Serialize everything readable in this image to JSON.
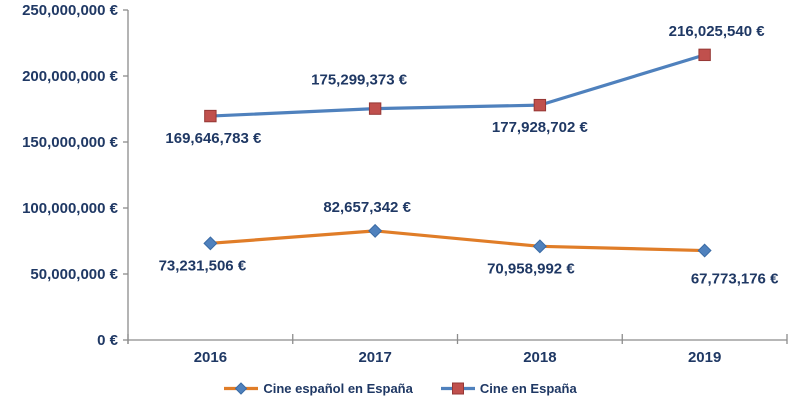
{
  "chart_data": {
    "type": "line",
    "title": "",
    "categories": [
      "2016",
      "2017",
      "2018",
      "2019"
    ],
    "series": [
      {
        "name": "Cine español en España",
        "line_color": "#E07D28",
        "marker": "diamond",
        "marker_color": "#4F81BD",
        "marker_stroke": "#3A6BA5",
        "values": [
          73231506,
          82657342,
          70958992,
          67773176
        ],
        "labels": [
          "73,231,506 €",
          "82,657,342 €",
          "70,958,992 €",
          "67,773,176 €"
        ],
        "label_positions": [
          "below",
          "above",
          "below",
          "below"
        ],
        "label_dx": [
          -8,
          -8,
          -9,
          30
        ],
        "label_dy": [
          0,
          0,
          0,
          6
        ]
      },
      {
        "name": "Cine en España",
        "line_color": "#4F81BD",
        "marker": "square",
        "marker_color": "#C0504D",
        "marker_stroke": "#953735",
        "values": [
          169646783,
          175299373,
          177928702,
          216025540
        ],
        "labels": [
          "169,646,783 €",
          "175,299,373 €",
          "177,928,702 €",
          "216,025,540 €"
        ],
        "label_positions": [
          "below",
          "above",
          "below",
          "above"
        ],
        "label_dx": [
          3,
          -16,
          0,
          12
        ],
        "label_dy": [
          0,
          -5,
          0,
          0
        ]
      }
    ],
    "y_axis": {
      "min": 0,
      "max": 250000000,
      "step": 50000000,
      "tick_labels": [
        "0 €",
        "50,000,000 €",
        "100,000,000 €",
        "150,000,000 €",
        "200,000,000 €",
        "250,000,000 €"
      ]
    },
    "x_axis": {
      "tick_labels": [
        "2016",
        "2017",
        "2018",
        "2019"
      ]
    },
    "legend": {
      "position": "bottom",
      "entries": [
        "Cine español en España",
        "Cine en España"
      ]
    },
    "grid": false,
    "text_color": "#1F3864",
    "axis_color": "#8C8C8C"
  }
}
